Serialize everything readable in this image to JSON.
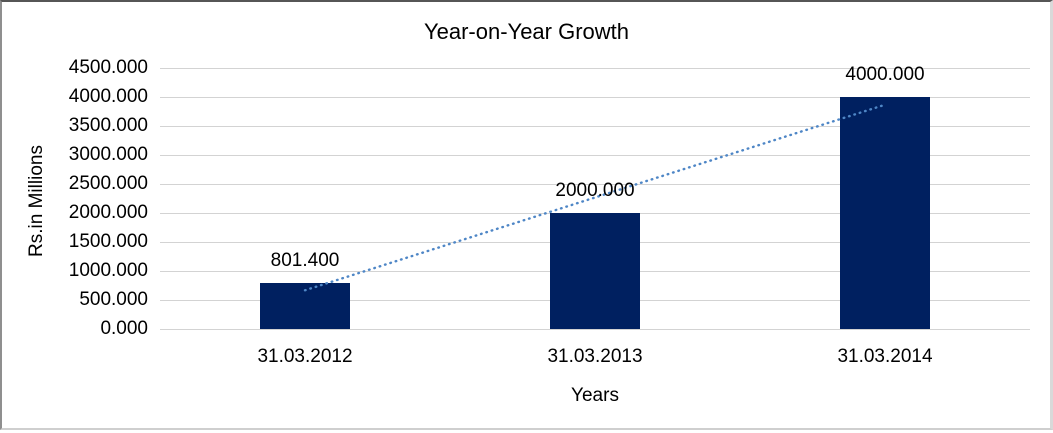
{
  "chart_data": {
    "type": "bar",
    "title": "Year-on-Year Growth",
    "categories": [
      "31.03.2012",
      "31.03.2013",
      "31.03.2014"
    ],
    "values": [
      801.4,
      2000,
      4000
    ],
    "data_labels": [
      "801.400",
      "2000.000",
      "4000.000"
    ],
    "xlabel": "Years",
    "ylabel": "Rs.in Millions",
    "ylim": [
      0,
      4500
    ],
    "ytick_step": 500,
    "ytick_labels": [
      "4500.000",
      "4000.000",
      "3500.000",
      "3000.000",
      "2500.000",
      "2000.000",
      "1500.000",
      "1000.000",
      "500.000",
      "0.000"
    ],
    "grid": true,
    "legend": "none",
    "bar_color": "#002060",
    "gridline_color": "#d3d3d3",
    "trendline": {
      "type": "linear",
      "style": "dotted",
      "color": "#4e86c6"
    }
  }
}
